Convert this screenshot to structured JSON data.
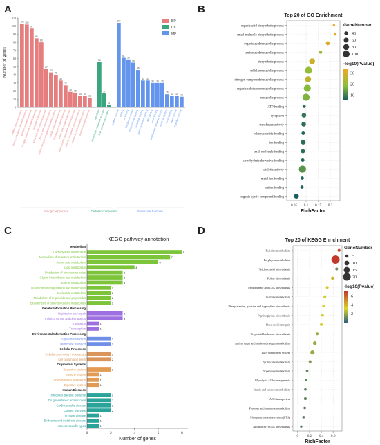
{
  "panel_labels": {
    "A": "A",
    "B": "B",
    "C": "C",
    "D": "D"
  },
  "chart_data": [
    {
      "panel": "A",
      "type": "bar",
      "title": "",
      "ylabel": "Number of genes",
      "ylim": [
        0,
        110
      ],
      "yticks": [
        0,
        10,
        20,
        30,
        40,
        50,
        60,
        70,
        80,
        90,
        100,
        110
      ],
      "legend": [
        {
          "name": "BP",
          "color": "#e57f7f"
        },
        {
          "name": "CC",
          "color": "#3aa57e"
        },
        {
          "name": "MF",
          "color": "#6495ed"
        }
      ],
      "groups": [
        {
          "name": "Biological process",
          "color": "#e57f7f",
          "values": [
            103,
            102,
            97,
            85,
            80,
            47,
            43,
            40,
            33,
            27,
            19,
            18,
            14,
            14,
            12
          ]
        },
        {
          "name": "Cellular component",
          "color": "#3aa57e",
          "values": [
            56,
            17,
            3
          ]
        },
        {
          "name": "Molecular function",
          "color": "#6495ed",
          "values": [
            104,
            61,
            59,
            55,
            46,
            33,
            33,
            30,
            30,
            30,
            16,
            14,
            14,
            13
          ]
        }
      ],
      "category_labels": {
        "Biological process": [
          "cellular metabolic process",
          "organic substance metabolic process",
          "primary metabolic process",
          "nitrogen compound metabolic process",
          "biosynthetic process",
          "small molecule metabolic process",
          "organic acid metabolic process",
          "cellular nitrogen compound metabolic process",
          "cellular biosynthetic process",
          "heterocycle metabolic process",
          "amino acid metabolic process",
          "organic cyclic compound metabolic process",
          "aromatic compound metabolic process",
          "carboxylic acid metabolic process",
          "oxoacid metabolic process"
        ],
        "Cellular component": [
          "cytoplasm",
          "intracellular anatomical structure",
          "DNA polymerase complex"
        ],
        "Molecular function": [
          "catalytic activity",
          "binding",
          "ion binding",
          "transferase activity",
          "small molecule binding",
          "nucleotide binding",
          "purine nucleotide binding",
          "ATP binding",
          "anion binding",
          "carbohydrate derivative binding",
          "metal ion binding",
          "cation binding",
          "ligase activity",
          "hydrolase activity"
        ]
      }
    },
    {
      "panel": "B",
      "type": "scatter",
      "title": "Top 20 of GO Enrichment",
      "xlabel": "RichFactor",
      "xlim": [
        0.02,
        0.24
      ],
      "xticks": [
        0.05,
        0.1,
        0.15,
        0.2
      ],
      "size_legend_title": "GeneNumber",
      "size_legend": [
        40,
        60,
        80,
        100
      ],
      "color_legend_title": "-log10(Pvalue)",
      "color_ticks": [
        10,
        20,
        30
      ],
      "color_range": [
        6,
        34
      ],
      "points": [
        {
          "term": "organic acid biosynthetic process",
          "x": 0.215,
          "size": 14,
          "p": 33
        },
        {
          "term": "small molecule biosynthetic process",
          "x": 0.22,
          "size": 19,
          "p": 32
        },
        {
          "term": "organic acid metabolic process",
          "x": 0.19,
          "size": 43,
          "p": 30
        },
        {
          "term": "amino acid metabolic process",
          "x": 0.16,
          "size": 27,
          "p": 20
        },
        {
          "term": "biosynthetic process",
          "x": 0.125,
          "size": 80,
          "p": 28
        },
        {
          "term": "cellular metabolic process",
          "x": 0.11,
          "size": 103,
          "p": 20
        },
        {
          "term": "nitrogen compound metabolic process",
          "x": 0.108,
          "size": 85,
          "p": 26
        },
        {
          "term": "organic substance metabolic process",
          "x": 0.105,
          "size": 102,
          "p": 18
        },
        {
          "term": "metabolic process",
          "x": 0.1,
          "size": 104,
          "p": 17
        },
        {
          "term": "ATP binding",
          "x": 0.092,
          "size": 30,
          "p": 8
        },
        {
          "term": "cytoplasm",
          "x": 0.091,
          "size": 56,
          "p": 9
        },
        {
          "term": "transferase activity",
          "x": 0.09,
          "size": 55,
          "p": 8
        },
        {
          "term": "ribonucleotide binding",
          "x": 0.088,
          "size": 33,
          "p": 7
        },
        {
          "term": "ion binding",
          "x": 0.088,
          "size": 59,
          "p": 8
        },
        {
          "term": "small molecule binding",
          "x": 0.087,
          "size": 46,
          "p": 8
        },
        {
          "term": "carbohydrate derivative binding",
          "x": 0.086,
          "size": 33,
          "p": 7
        },
        {
          "term": "catalytic activity",
          "x": 0.085,
          "size": 104,
          "p": 13
        },
        {
          "term": "metal ion binding",
          "x": 0.084,
          "size": 30,
          "p": 7
        },
        {
          "term": "cation binding",
          "x": 0.083,
          "size": 30,
          "p": 7
        },
        {
          "term": "organic cyclic compound binding",
          "x": 0.06,
          "size": 61,
          "p": 6
        }
      ]
    },
    {
      "panel": "C",
      "type": "bar",
      "orientation": "horizontal",
      "title": "KEGG pathway annotation",
      "xlabel": "Number of genes",
      "xlim": [
        0,
        8.5
      ],
      "xticks": [
        0,
        2,
        4,
        6,
        8
      ],
      "groups": [
        {
          "name": "Metabolism",
          "color": "#7cc43a",
          "rows": [
            {
              "label": "Carbohydrate metabolism",
              "value": 8
            },
            {
              "label": "Metabolism of cofactors and vitamins",
              "value": 7
            },
            {
              "label": "Amino acid metabolism",
              "value": 6
            },
            {
              "label": "Lipid metabolism",
              "value": 4
            },
            {
              "label": "Metabolism of other amino acids",
              "value": 3
            },
            {
              "label": "Glycan biosynthesis and metabolism",
              "value": 3
            },
            {
              "label": "Energy metabolism",
              "value": 3
            },
            {
              "label": "Xenobiotics biodegradation and metabolism",
              "value": 2
            },
            {
              "label": "Nucleotide metabolism",
              "value": 2
            },
            {
              "label": "Metabolism of terpenoids and polyketides",
              "value": 2
            },
            {
              "label": "Biosynthesis of other secondary metabolites",
              "value": 2
            }
          ]
        },
        {
          "name": "Genetic Information Processing",
          "color": "#9d6fe0",
          "rows": [
            {
              "label": "Replication and repair",
              "value": 3
            },
            {
              "label": "Folding, sorting and degradation",
              "value": 3
            },
            {
              "label": "Translation",
              "value": 1
            },
            {
              "label": "Transcription",
              "value": 1
            }
          ]
        },
        {
          "name": "Environmental Information Processing",
          "color": "#6f8ee8",
          "rows": [
            {
              "label": "Signal transduction",
              "value": 2
            },
            {
              "label": "Membrane transport",
              "value": 2
            }
          ]
        },
        {
          "name": "Cellular Processes",
          "color": "#d9955a",
          "rows": [
            {
              "label": "Cellular community - eukaryotes",
              "value": 2
            },
            {
              "label": "Cell growth and death",
              "value": 2
            }
          ]
        },
        {
          "name": "Organismal Systems",
          "color": "#e39a52",
          "rows": [
            {
              "label": "Endocrine system",
              "value": 2
            },
            {
              "label": "Immune system",
              "value": 1
            },
            {
              "label": "Environmental adaptation",
              "value": 1
            },
            {
              "label": "Digestive system",
              "value": 1
            }
          ]
        },
        {
          "name": "Human Diseases",
          "color": "#2aa39a",
          "rows": [
            {
              "label": "Infectious disease: bacterial",
              "value": 2
            },
            {
              "label": "Drug resistance: antimicrobial",
              "value": 2
            },
            {
              "label": "Cardiovascular disease",
              "value": 2
            },
            {
              "label": "Cancer: overview",
              "value": 2
            },
            {
              "label": "Immune disease",
              "value": 1
            },
            {
              "label": "Endocrine and metabolic disease",
              "value": 1
            },
            {
              "label": "Cancer: specific types",
              "value": 1
            }
          ]
        }
      ]
    },
    {
      "panel": "D",
      "type": "scatter",
      "title": "Top 20 of KEGG Enrichment",
      "xlabel": "RichFactor",
      "xlim": [
        -0.08,
        0.75
      ],
      "xticks": [
        0,
        0.2,
        0.4,
        0.6
      ],
      "size_legend_title": "GeneNumber",
      "size_legend": [
        5,
        10,
        15,
        20
      ],
      "color_legend_title": "-log10(Pvalue)",
      "color_ticks": [
        2,
        4,
        6
      ],
      "color_range": [
        0,
        7
      ],
      "points": [
        {
          "term": "Histidine metabolism",
          "x": 0.7,
          "size": 4,
          "p": 6.5
        },
        {
          "term": "Porphyrin metabolism",
          "x": 0.64,
          "size": 22,
          "p": 7
        },
        {
          "term": "Teichoic acid biosynthesis",
          "x": 0.66,
          "size": 4,
          "p": 1.2
        },
        {
          "term": "Folate biosynthesis",
          "x": 0.59,
          "size": 5,
          "p": 4
        },
        {
          "term": "Pantothenate and CoA biosynthesis",
          "x": 0.5,
          "size": 4,
          "p": 3.5
        },
        {
          "term": "Thiamine metabolism",
          "x": 0.46,
          "size": 4,
          "p": 3
        },
        {
          "term": "Phenylalanine, tyrosine and tryptophan biosynthesis",
          "x": 0.44,
          "size": 4,
          "p": 3
        },
        {
          "term": "Peptidoglycan biosynthesis",
          "x": 0.42,
          "size": 4,
          "p": 3
        },
        {
          "term": "Base excision repair",
          "x": 0.4,
          "size": 4,
          "p": 3
        },
        {
          "term": "Terpenoid backbone biosynthesis",
          "x": 0.33,
          "size": 4,
          "p": 2
        },
        {
          "term": "Amino sugar and nucleotide sugar metabolism",
          "x": 0.29,
          "size": 7,
          "p": 2
        },
        {
          "term": "Two−component system",
          "x": 0.25,
          "size": 9,
          "p": 2
        },
        {
          "term": "Pyrimidine metabolism",
          "x": 0.21,
          "size": 4,
          "p": 1.5
        },
        {
          "term": "Propanoate metabolism",
          "x": 0.16,
          "size": 3,
          "p": 1
        },
        {
          "term": "Glycolysis / Gluconeogenesis",
          "x": 0.14,
          "size": 3,
          "p": 1
        },
        {
          "term": "Starch and sucrose metabolism",
          "x": 0.13,
          "size": 3,
          "p": 1
        },
        {
          "term": "ABC transporters",
          "x": 0.13,
          "size": 4,
          "p": 1
        },
        {
          "term": "Fructose and mannose metabolism",
          "x": 0.12,
          "size": 3,
          "p": 1
        },
        {
          "term": "Phosphotransferase system (PTS)",
          "x": 0.1,
          "size": 3,
          "p": 1
        },
        {
          "term": "Aminoacyl−tRNA biosynthesis",
          "x": 0.06,
          "size": 2,
          "p": 0.5
        }
      ]
    }
  ]
}
